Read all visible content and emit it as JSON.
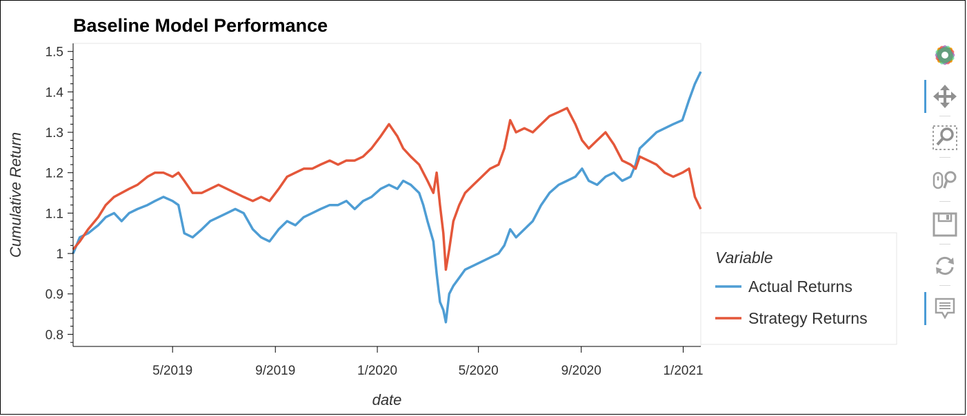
{
  "chart_data": {
    "type": "line",
    "title": "Baseline Model Performance",
    "xlabel": "date",
    "ylabel": "Cumulative Return",
    "x_ticks": [
      "5/2019",
      "9/2019",
      "1/2020",
      "5/2020",
      "9/2020",
      "1/2021"
    ],
    "y_ticks": [
      "0.8",
      "0.9",
      "1",
      "1.1",
      "1.2",
      "1.3",
      "1.4",
      "1.5"
    ],
    "xlim": [
      "2019-01-02",
      "2021-01-22"
    ],
    "ylim": [
      0.77,
      1.52
    ],
    "grid": false,
    "legend": {
      "title": "Variable",
      "position": "right"
    },
    "series": [
      {
        "name": "Actual Returns",
        "color": "#4e9dd4",
        "points": [
          [
            "2019-01-02",
            1.0
          ],
          [
            "2019-01-10",
            1.04
          ],
          [
            "2019-01-20",
            1.05
          ],
          [
            "2019-02-01",
            1.07
          ],
          [
            "2019-02-10",
            1.09
          ],
          [
            "2019-02-20",
            1.1
          ],
          [
            "2019-03-01",
            1.08
          ],
          [
            "2019-03-10",
            1.1
          ],
          [
            "2019-03-20",
            1.11
          ],
          [
            "2019-04-01",
            1.12
          ],
          [
            "2019-04-10",
            1.13
          ],
          [
            "2019-04-20",
            1.14
          ],
          [
            "2019-05-01",
            1.13
          ],
          [
            "2019-05-08",
            1.12
          ],
          [
            "2019-05-15",
            1.05
          ],
          [
            "2019-05-25",
            1.04
          ],
          [
            "2019-06-05",
            1.06
          ],
          [
            "2019-06-15",
            1.08
          ],
          [
            "2019-06-25",
            1.09
          ],
          [
            "2019-07-05",
            1.1
          ],
          [
            "2019-07-15",
            1.11
          ],
          [
            "2019-07-25",
            1.1
          ],
          [
            "2019-08-05",
            1.06
          ],
          [
            "2019-08-15",
            1.04
          ],
          [
            "2019-08-25",
            1.03
          ],
          [
            "2019-09-05",
            1.06
          ],
          [
            "2019-09-15",
            1.08
          ],
          [
            "2019-09-25",
            1.07
          ],
          [
            "2019-10-05",
            1.09
          ],
          [
            "2019-10-15",
            1.1
          ],
          [
            "2019-10-25",
            1.11
          ],
          [
            "2019-11-05",
            1.12
          ],
          [
            "2019-11-15",
            1.12
          ],
          [
            "2019-11-25",
            1.13
          ],
          [
            "2019-12-05",
            1.11
          ],
          [
            "2019-12-15",
            1.13
          ],
          [
            "2019-12-25",
            1.14
          ],
          [
            "2020-01-05",
            1.16
          ],
          [
            "2020-01-15",
            1.17
          ],
          [
            "2020-01-25",
            1.16
          ],
          [
            "2020-02-01",
            1.18
          ],
          [
            "2020-02-10",
            1.17
          ],
          [
            "2020-02-20",
            1.15
          ],
          [
            "2020-02-25",
            1.12
          ],
          [
            "2020-03-01",
            1.08
          ],
          [
            "2020-03-08",
            1.03
          ],
          [
            "2020-03-12",
            0.95
          ],
          [
            "2020-03-16",
            0.88
          ],
          [
            "2020-03-20",
            0.86
          ],
          [
            "2020-03-23",
            0.83
          ],
          [
            "2020-03-27",
            0.9
          ],
          [
            "2020-04-01",
            0.92
          ],
          [
            "2020-04-08",
            0.94
          ],
          [
            "2020-04-15",
            0.96
          ],
          [
            "2020-04-25",
            0.97
          ],
          [
            "2020-05-05",
            0.98
          ],
          [
            "2020-05-15",
            0.99
          ],
          [
            "2020-05-25",
            1.0
          ],
          [
            "2020-06-01",
            1.02
          ],
          [
            "2020-06-08",
            1.06
          ],
          [
            "2020-06-15",
            1.04
          ],
          [
            "2020-06-25",
            1.06
          ],
          [
            "2020-07-05",
            1.08
          ],
          [
            "2020-07-15",
            1.12
          ],
          [
            "2020-07-25",
            1.15
          ],
          [
            "2020-08-05",
            1.17
          ],
          [
            "2020-08-15",
            1.18
          ],
          [
            "2020-08-25",
            1.19
          ],
          [
            "2020-09-02",
            1.21
          ],
          [
            "2020-09-10",
            1.18
          ],
          [
            "2020-09-20",
            1.17
          ],
          [
            "2020-09-30",
            1.19
          ],
          [
            "2020-10-10",
            1.2
          ],
          [
            "2020-10-20",
            1.18
          ],
          [
            "2020-10-30",
            1.19
          ],
          [
            "2020-11-05",
            1.22
          ],
          [
            "2020-11-10",
            1.26
          ],
          [
            "2020-11-20",
            1.28
          ],
          [
            "2020-11-30",
            1.3
          ],
          [
            "2020-12-10",
            1.31
          ],
          [
            "2020-12-20",
            1.32
          ],
          [
            "2020-12-31",
            1.33
          ],
          [
            "2021-01-08",
            1.38
          ],
          [
            "2021-01-15",
            1.42
          ],
          [
            "2021-01-22",
            1.45
          ]
        ]
      },
      {
        "name": "Strategy Returns",
        "color": "#e4573a",
        "points": [
          [
            "2019-01-02",
            1.01
          ],
          [
            "2019-01-10",
            1.03
          ],
          [
            "2019-01-20",
            1.06
          ],
          [
            "2019-02-01",
            1.09
          ],
          [
            "2019-02-10",
            1.12
          ],
          [
            "2019-02-20",
            1.14
          ],
          [
            "2019-03-01",
            1.15
          ],
          [
            "2019-03-10",
            1.16
          ],
          [
            "2019-03-20",
            1.17
          ],
          [
            "2019-04-01",
            1.19
          ],
          [
            "2019-04-10",
            1.2
          ],
          [
            "2019-04-20",
            1.2
          ],
          [
            "2019-05-01",
            1.19
          ],
          [
            "2019-05-08",
            1.2
          ],
          [
            "2019-05-15",
            1.18
          ],
          [
            "2019-05-25",
            1.15
          ],
          [
            "2019-06-05",
            1.15
          ],
          [
            "2019-06-15",
            1.16
          ],
          [
            "2019-06-25",
            1.17
          ],
          [
            "2019-07-05",
            1.16
          ],
          [
            "2019-07-15",
            1.15
          ],
          [
            "2019-07-25",
            1.14
          ],
          [
            "2019-08-05",
            1.13
          ],
          [
            "2019-08-15",
            1.14
          ],
          [
            "2019-08-25",
            1.13
          ],
          [
            "2019-09-05",
            1.16
          ],
          [
            "2019-09-15",
            1.19
          ],
          [
            "2019-09-25",
            1.2
          ],
          [
            "2019-10-05",
            1.21
          ],
          [
            "2019-10-15",
            1.21
          ],
          [
            "2019-10-25",
            1.22
          ],
          [
            "2019-11-05",
            1.23
          ],
          [
            "2019-11-15",
            1.22
          ],
          [
            "2019-11-25",
            1.23
          ],
          [
            "2019-12-05",
            1.23
          ],
          [
            "2019-12-15",
            1.24
          ],
          [
            "2019-12-25",
            1.26
          ],
          [
            "2020-01-05",
            1.29
          ],
          [
            "2020-01-15",
            1.32
          ],
          [
            "2020-01-25",
            1.29
          ],
          [
            "2020-02-01",
            1.26
          ],
          [
            "2020-02-10",
            1.24
          ],
          [
            "2020-02-20",
            1.22
          ],
          [
            "2020-02-25",
            1.2
          ],
          [
            "2020-03-01",
            1.18
          ],
          [
            "2020-03-08",
            1.15
          ],
          [
            "2020-03-12",
            1.2
          ],
          [
            "2020-03-16",
            1.12
          ],
          [
            "2020-03-20",
            1.05
          ],
          [
            "2020-03-23",
            0.96
          ],
          [
            "2020-03-27",
            1.01
          ],
          [
            "2020-04-01",
            1.08
          ],
          [
            "2020-04-08",
            1.12
          ],
          [
            "2020-04-15",
            1.15
          ],
          [
            "2020-04-25",
            1.17
          ],
          [
            "2020-05-05",
            1.19
          ],
          [
            "2020-05-15",
            1.21
          ],
          [
            "2020-05-25",
            1.22
          ],
          [
            "2020-06-01",
            1.26
          ],
          [
            "2020-06-08",
            1.33
          ],
          [
            "2020-06-15",
            1.3
          ],
          [
            "2020-06-25",
            1.31
          ],
          [
            "2020-07-05",
            1.3
          ],
          [
            "2020-07-15",
            1.32
          ],
          [
            "2020-07-25",
            1.34
          ],
          [
            "2020-08-05",
            1.35
          ],
          [
            "2020-08-15",
            1.36
          ],
          [
            "2020-08-25",
            1.32
          ],
          [
            "2020-09-02",
            1.28
          ],
          [
            "2020-09-10",
            1.26
          ],
          [
            "2020-09-20",
            1.28
          ],
          [
            "2020-09-30",
            1.3
          ],
          [
            "2020-10-10",
            1.27
          ],
          [
            "2020-10-20",
            1.23
          ],
          [
            "2020-10-30",
            1.22
          ],
          [
            "2020-11-05",
            1.21
          ],
          [
            "2020-11-10",
            1.24
          ],
          [
            "2020-11-20",
            1.23
          ],
          [
            "2020-11-30",
            1.22
          ],
          [
            "2020-12-10",
            1.2
          ],
          [
            "2020-12-20",
            1.19
          ],
          [
            "2020-12-31",
            1.2
          ],
          [
            "2021-01-08",
            1.21
          ],
          [
            "2021-01-15",
            1.14
          ],
          [
            "2021-01-22",
            1.11
          ]
        ]
      }
    ]
  },
  "toolbar": {
    "items": [
      {
        "icon": "bokeh-logo-icon",
        "active": false
      },
      {
        "icon": "pan-icon",
        "active": true
      },
      {
        "icon": "box-zoom-icon",
        "active": false
      },
      {
        "icon": "wheel-zoom-icon",
        "active": false
      },
      {
        "icon": "save-icon",
        "active": false
      },
      {
        "icon": "reset-icon",
        "active": false
      },
      {
        "icon": "hover-icon",
        "active": true
      }
    ]
  }
}
